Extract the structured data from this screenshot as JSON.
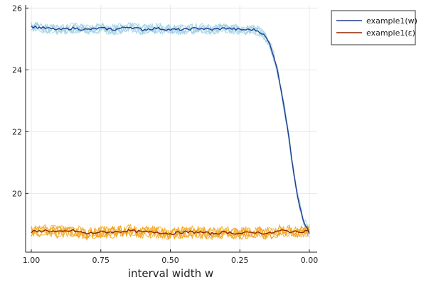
{
  "chart_data": {
    "type": "line",
    "title": "",
    "xlabel": "interval width w",
    "ylabel": "",
    "xlim": [
      1.0,
      0.0
    ],
    "x_reversed": true,
    "ylim": [
      18.1,
      26.1
    ],
    "grid": true,
    "legend_position": "top-right",
    "x_ticks": [
      {
        "value": 1.0,
        "label": "1.00"
      },
      {
        "value": 0.75,
        "label": "0.75"
      },
      {
        "value": 0.5,
        "label": "0.50"
      },
      {
        "value": 0.25,
        "label": "0.25"
      },
      {
        "value": 0.0,
        "label": "0.00"
      }
    ],
    "y_ticks": [
      {
        "value": 20,
        "label": "20"
      },
      {
        "value": 22,
        "label": "22"
      },
      {
        "value": 24,
        "label": "24"
      },
      {
        "value": 26,
        "label": "26"
      }
    ],
    "series": [
      {
        "name": "example1(w)",
        "color": "#1f3b8f",
        "band_color": "#9fd0e3",
        "x": [
          1.0,
          0.95,
          0.9,
          0.85,
          0.8,
          0.75,
          0.7,
          0.65,
          0.6,
          0.55,
          0.5,
          0.45,
          0.4,
          0.35,
          0.3,
          0.25,
          0.2,
          0.18,
          0.16,
          0.14,
          0.12,
          0.1,
          0.08,
          0.06,
          0.04,
          0.02,
          0.0
        ],
        "values": [
          25.4,
          25.35,
          25.3,
          25.35,
          25.3,
          25.35,
          25.3,
          25.4,
          25.3,
          25.35,
          25.3,
          25.3,
          25.35,
          25.3,
          25.35,
          25.3,
          25.3,
          25.25,
          25.1,
          24.8,
          24.2,
          23.3,
          22.2,
          20.9,
          19.8,
          19.1,
          18.7
        ],
        "band_halfwidth": 0.17
      },
      {
        "name": "example1(ε)",
        "color": "#8b2500",
        "band_color": "#f2a31b",
        "x": [
          1.0,
          0.95,
          0.9,
          0.85,
          0.8,
          0.75,
          0.7,
          0.65,
          0.6,
          0.55,
          0.5,
          0.45,
          0.4,
          0.35,
          0.3,
          0.25,
          0.2,
          0.15,
          0.1,
          0.05,
          0.0
        ],
        "values": [
          18.75,
          18.8,
          18.75,
          18.8,
          18.7,
          18.75,
          18.75,
          18.8,
          18.75,
          18.75,
          18.7,
          18.75,
          18.75,
          18.7,
          18.75,
          18.7,
          18.75,
          18.7,
          18.8,
          18.75,
          18.8
        ],
        "band_halfwidth": 0.2
      }
    ]
  }
}
